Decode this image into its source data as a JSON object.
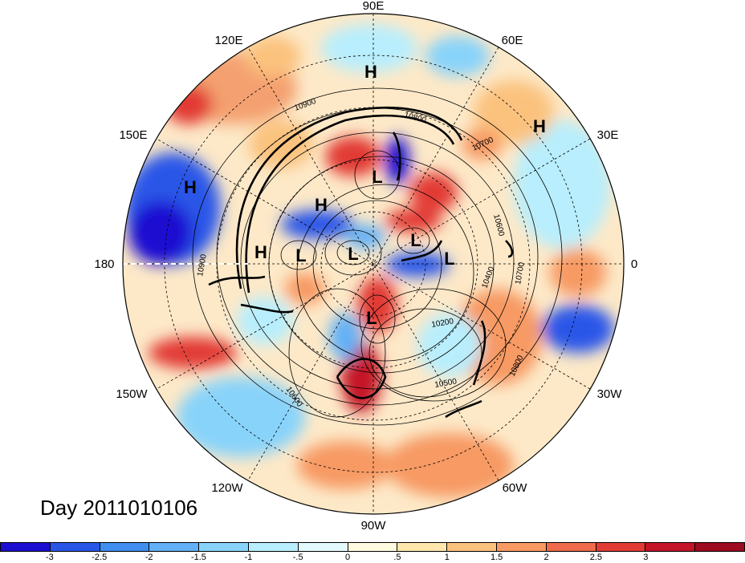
{
  "title": "",
  "day_label": "Day 2011010106",
  "longitude_labels": {
    "e90": "90E",
    "e60": "60E",
    "e30": "30E",
    "zero": "0",
    "w30": "30W",
    "w60": "60W",
    "w90": "90W",
    "w120": "120W",
    "w150": "150W",
    "d180": "180",
    "e150": "150E",
    "e120": "120E"
  },
  "pressure_centers": [
    "H",
    "H",
    "H",
    "H",
    "H",
    "L",
    "L",
    "L",
    "L",
    "L",
    "L"
  ],
  "contour_labels": [
    "10900",
    "10800",
    "10700",
    "10600",
    "10700",
    "10400",
    "10200",
    "10500",
    "10600",
    "10800",
    "10900"
  ],
  "colorbar": {
    "colors": [
      "#1c0fd1",
      "#2a56e8",
      "#3f8ef0",
      "#62b0f6",
      "#88d3fa",
      "#b8eefd",
      "#e4f9fd",
      "#fffbe0",
      "#fde7ad",
      "#fbc27e",
      "#f79a63",
      "#ef6b4b",
      "#e23b36",
      "#c41427",
      "#9e0a1f"
    ],
    "tick_labels": [
      "-3",
      "-2.5",
      "-2",
      "-1.5",
      "-1",
      "-.5",
      "0",
      ".5",
      "1",
      "1.5",
      "2",
      "2.5",
      "3"
    ]
  }
}
